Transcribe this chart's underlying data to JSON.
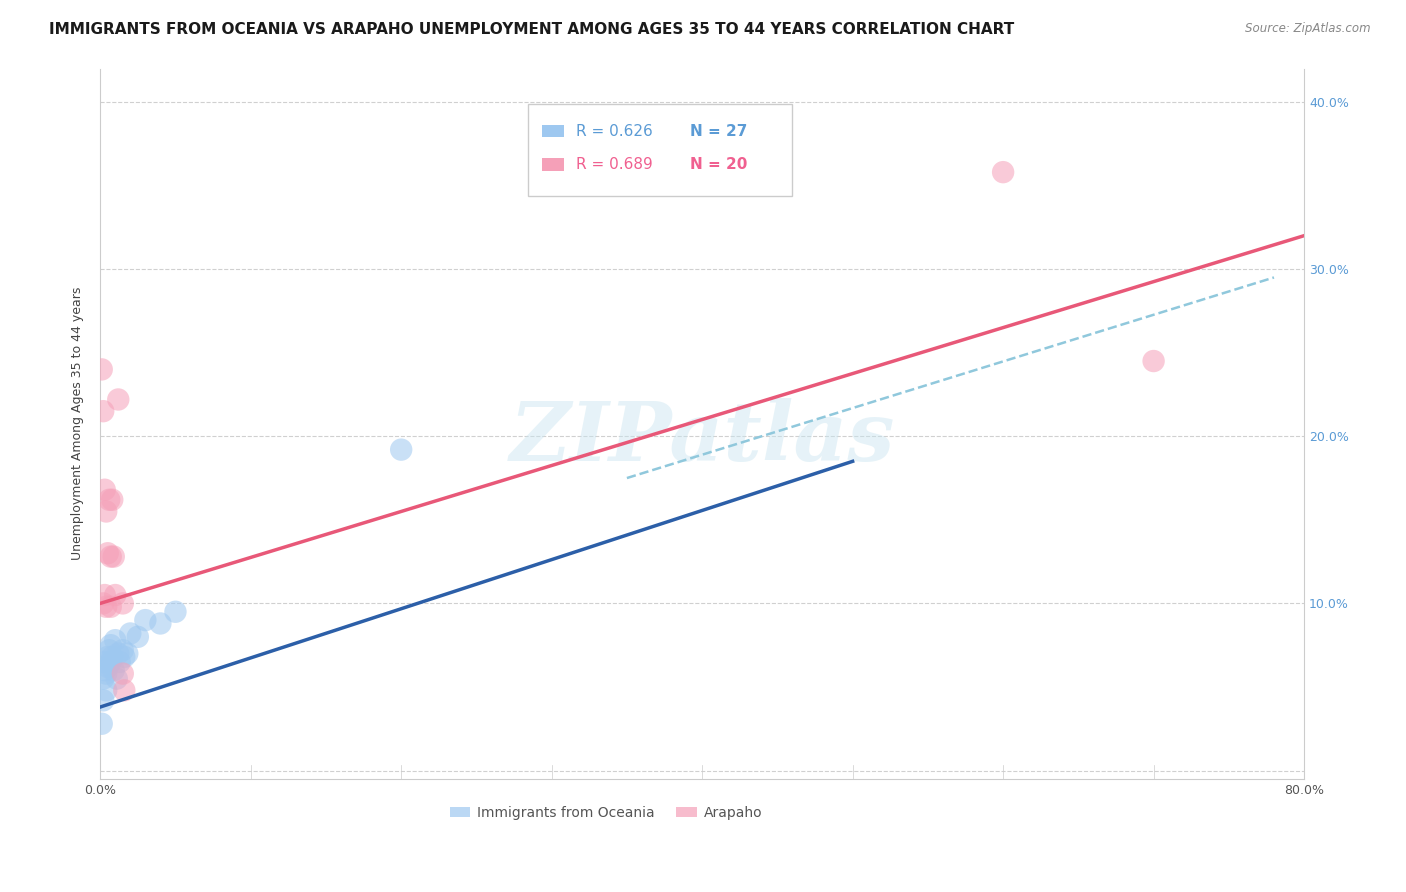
{
  "title": "IMMIGRANTS FROM OCEANIA VS ARAPAHO UNEMPLOYMENT AMONG AGES 35 TO 44 YEARS CORRELATION CHART",
  "source": "Source: ZipAtlas.com",
  "ylabel": "Unemployment Among Ages 35 to 44 years",
  "xlim": [
    0,
    0.8
  ],
  "ylim": [
    -0.005,
    0.42
  ],
  "yticks": [
    0.0,
    0.1,
    0.2,
    0.3,
    0.4
  ],
  "ytick_labels": [
    "",
    "10.0%",
    "20.0%",
    "30.0%",
    "40.0%"
  ],
  "xticks": [
    0.0,
    0.1,
    0.2,
    0.3,
    0.4,
    0.5,
    0.6,
    0.7,
    0.8
  ],
  "xtick_labels": [
    "0.0%",
    "",
    "",
    "",
    "",
    "",
    "",
    "",
    "80.0%"
  ],
  "legend_r_labels": [
    "R = 0.626",
    "R = 0.689"
  ],
  "legend_n_labels": [
    "N = 27",
    "N = 20"
  ],
  "legend_labels": [
    "Immigrants from Oceania",
    "Arapaho"
  ],
  "oceania_points": [
    [
      0.001,
      0.028
    ],
    [
      0.002,
      0.042
    ],
    [
      0.002,
      0.055
    ],
    [
      0.003,
      0.06
    ],
    [
      0.003,
      0.065
    ],
    [
      0.004,
      0.048
    ],
    [
      0.004,
      0.058
    ],
    [
      0.005,
      0.062
    ],
    [
      0.005,
      0.068
    ],
    [
      0.006,
      0.072
    ],
    [
      0.007,
      0.065
    ],
    [
      0.007,
      0.075
    ],
    [
      0.008,
      0.068
    ],
    [
      0.009,
      0.06
    ],
    [
      0.01,
      0.078
    ],
    [
      0.011,
      0.055
    ],
    [
      0.012,
      0.07
    ],
    [
      0.013,
      0.065
    ],
    [
      0.015,
      0.072
    ],
    [
      0.016,
      0.068
    ],
    [
      0.018,
      0.07
    ],
    [
      0.02,
      0.082
    ],
    [
      0.025,
      0.08
    ],
    [
      0.03,
      0.09
    ],
    [
      0.04,
      0.088
    ],
    [
      0.05,
      0.095
    ],
    [
      0.2,
      0.192
    ]
  ],
  "arapaho_points": [
    [
      0.001,
      0.24
    ],
    [
      0.002,
      0.215
    ],
    [
      0.002,
      0.1
    ],
    [
      0.003,
      0.105
    ],
    [
      0.003,
      0.168
    ],
    [
      0.004,
      0.155
    ],
    [
      0.004,
      0.098
    ],
    [
      0.005,
      0.13
    ],
    [
      0.006,
      0.162
    ],
    [
      0.007,
      0.128
    ],
    [
      0.007,
      0.098
    ],
    [
      0.008,
      0.162
    ],
    [
      0.009,
      0.128
    ],
    [
      0.01,
      0.105
    ],
    [
      0.012,
      0.222
    ],
    [
      0.015,
      0.1
    ],
    [
      0.015,
      0.058
    ],
    [
      0.016,
      0.048
    ],
    [
      0.6,
      0.358
    ],
    [
      0.7,
      0.245
    ]
  ],
  "oceania_line_x": [
    0.0,
    0.5
  ],
  "oceania_line_y": [
    0.038,
    0.185
  ],
  "arapaho_line_x": [
    0.0,
    0.8
  ],
  "arapaho_line_y": [
    0.1,
    0.32
  ],
  "dash_line_x": [
    0.35,
    0.78
  ],
  "dash_line_y": [
    0.175,
    0.295
  ],
  "watermark": "ZIPatlas",
  "bg_color": "#ffffff",
  "grid_color": "#d0d0d0",
  "oceania_color": "#9ec8f0",
  "arapaho_color": "#f5a0b8",
  "oceania_line_color": "#2c5fa8",
  "arapaho_line_color": "#e85878",
  "dash_line_color": "#90c8dc",
  "title_fontsize": 11,
  "axis_label_fontsize": 9,
  "tick_fontsize": 9,
  "legend_fontsize": 11,
  "r_color_blue": "#5b9bd5",
  "r_color_pink": "#f06090",
  "n_color_blue": "#5b9bd5",
  "n_color_pink": "#f06090"
}
